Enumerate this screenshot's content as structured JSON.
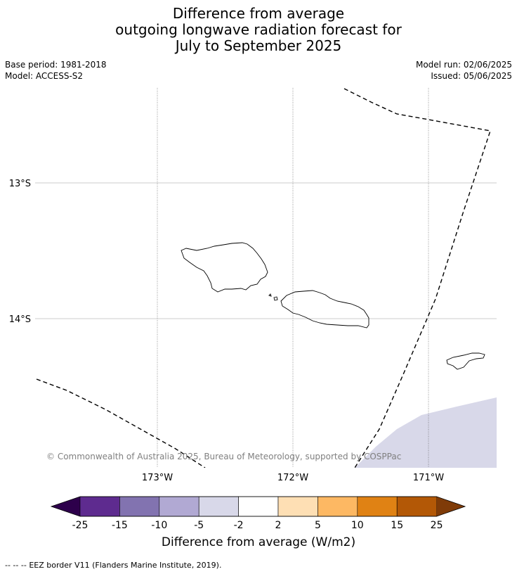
{
  "title": {
    "line1": "Difference from average",
    "line2": "outgoing longwave radiation forecast for",
    "line3": "July to September 2025"
  },
  "meta_left": {
    "base_period": "Base period: 1981-2018",
    "model": "Model: ACCESS-S2"
  },
  "meta_right": {
    "model_run": "Model run: 02/06/2025",
    "issued": "Issued: 05/06/2025"
  },
  "map": {
    "lat_labels": [
      "13°S",
      "14°S"
    ],
    "lon_labels": [
      "173°W",
      "172°W",
      "171°W"
    ],
    "attribution": "© Commonwealth of Australia 2025, Bureau of Meteorology, supported by COSPPac",
    "anomaly_fill_color": "#d8d8e9"
  },
  "colorbar": {
    "tick_labels": [
      "-25",
      "-15",
      "-10",
      "-5",
      "-2",
      "2",
      "5",
      "10",
      "15",
      "25"
    ],
    "colors": [
      "#2d004b",
      "#5e2b8f",
      "#8273b0",
      "#b1a9d3",
      "#d8d8e9",
      "#ffffff",
      "#fedfb4",
      "#fdb863",
      "#e08214",
      "#b35806",
      "#7f3b08"
    ],
    "label": "Difference from average (W/m2)"
  },
  "legend": {
    "eez_symbol": "-- -- --",
    "eez_text": "EEZ border V11 (Flanders Marine Institute, 2019)."
  }
}
